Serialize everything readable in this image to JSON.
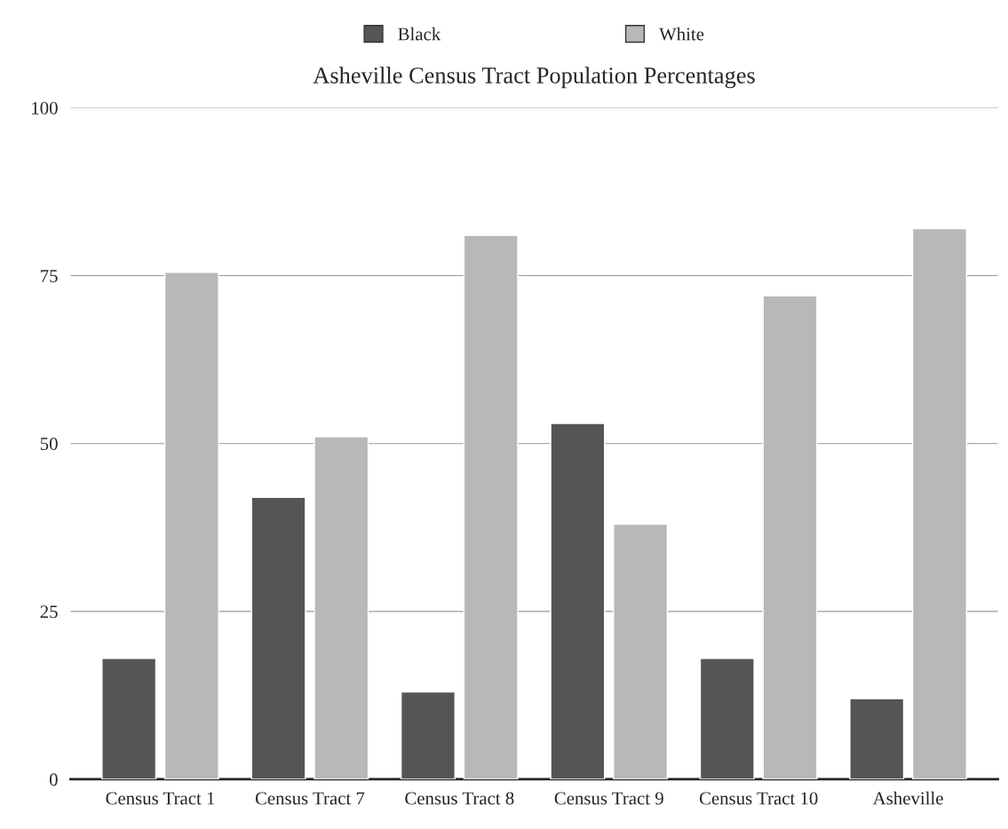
{
  "chart_data": {
    "type": "bar",
    "title": "Asheville Census Tract Population Percentages",
    "categories": [
      "Census Tract 1",
      "Census Tract 7",
      "Census Tract 8",
      "Census Tract 9",
      "Census Tract 10",
      "Asheville"
    ],
    "series": [
      {
        "name": "Black",
        "color": "#555555",
        "values": [
          18,
          42,
          13,
          53,
          18,
          12
        ]
      },
      {
        "name": "White",
        "color": "#b8b8b8",
        "values": [
          75.5,
          51,
          81,
          38,
          72,
          82
        ]
      }
    ],
    "ylim": [
      0,
      100
    ],
    "yticks": [
      0,
      25,
      50,
      75,
      100
    ],
    "grid": "y",
    "legend": "top"
  }
}
